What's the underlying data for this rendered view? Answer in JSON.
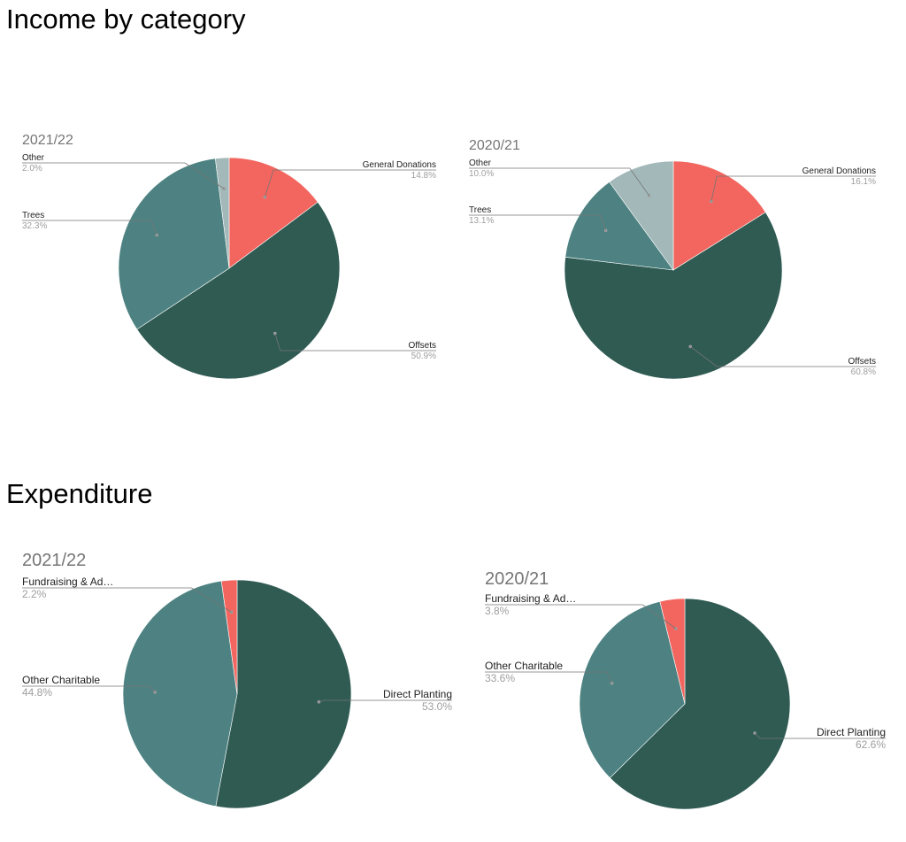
{
  "sections": {
    "income_title": "Income by category",
    "expenditure_title": "Expenditure"
  },
  "colors": {
    "general_donations": "#f2665f",
    "offsets": "#2f5b53",
    "trees": "#4e8282",
    "other": "#a3b8b8",
    "direct_planting": "#2f5b53",
    "other_charitable": "#4e8282",
    "fundraising": "#f2665f",
    "leader_line": "#757575"
  },
  "chart_data": [
    {
      "type": "pie",
      "title": "2021/22",
      "group": "Income by category",
      "slices": [
        {
          "label": "General Donations",
          "value": 14.8,
          "display": "14.8%",
          "color": "#f2665f"
        },
        {
          "label": "Offsets",
          "value": 50.9,
          "display": "50.9%",
          "color": "#2f5b53"
        },
        {
          "label": "Trees",
          "value": 32.3,
          "display": "32.3%",
          "color": "#4e8282"
        },
        {
          "label": "Other",
          "value": 2.0,
          "display": "2.0%",
          "color": "#a3b8b8"
        }
      ]
    },
    {
      "type": "pie",
      "title": "2020/21",
      "group": "Income by category",
      "slices": [
        {
          "label": "General Donations",
          "value": 16.1,
          "display": "16.1%",
          "color": "#f2665f"
        },
        {
          "label": "Offsets",
          "value": 60.8,
          "display": "60.8%",
          "color": "#2f5b53"
        },
        {
          "label": "Trees",
          "value": 13.1,
          "display": "13.1%",
          "color": "#4e8282"
        },
        {
          "label": "Other",
          "value": 10.0,
          "display": "10.0%",
          "color": "#a3b8b8"
        }
      ]
    },
    {
      "type": "pie",
      "title": "2021/22",
      "group": "Expenditure",
      "slices": [
        {
          "label": "Direct Planting",
          "value": 53.0,
          "display": "53.0%",
          "color": "#2f5b53"
        },
        {
          "label": "Other Charitable",
          "value": 44.8,
          "display": "44.8%",
          "color": "#4e8282"
        },
        {
          "label": "Fundraising & Ad…",
          "value": 2.2,
          "display": "2.2%",
          "color": "#f2665f"
        }
      ]
    },
    {
      "type": "pie",
      "title": "2020/21",
      "group": "Expenditure",
      "slices": [
        {
          "label": "Direct Planting",
          "value": 62.6,
          "display": "62.6%",
          "color": "#2f5b53"
        },
        {
          "label": "Other Charitable",
          "value": 33.6,
          "display": "33.6%",
          "color": "#4e8282"
        },
        {
          "label": "Fundraising & Ad…",
          "value": 3.8,
          "display": "3.8%",
          "color": "#f2665f"
        }
      ]
    }
  ]
}
